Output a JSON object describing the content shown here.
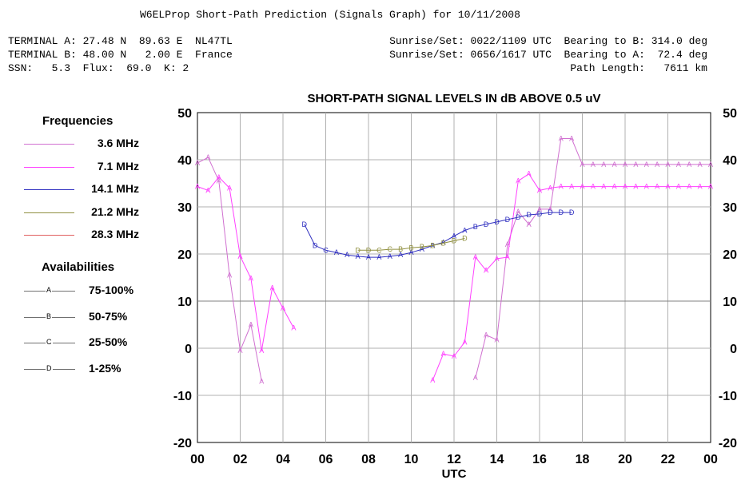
{
  "header": {
    "title": "W6ELProp Short-Path Prediction (Signals Graph) for 10/11/2008",
    "left_lines": [
      "TERMINAL A: 27.48 N  89.63 E  NL47TL",
      "TERMINAL B: 48.00 N   2.00 E  France",
      "SSN:   5.3  Flux:  69.0  K: 2"
    ],
    "right_lines": [
      "Sunrise/Set: 0022/1109 UTC  Bearing to B: 314.0 deg",
      "Sunrise/Set: 0656/1617 UTC  Bearing to A:  72.4 deg",
      "Path Length:   7611 km"
    ]
  },
  "legend": {
    "frequencies_title": "Frequencies",
    "frequencies": [
      {
        "label": "3.6 MHz",
        "color": "#d070d0"
      },
      {
        "label": "7.1 MHz",
        "color": "#ff40ff"
      },
      {
        "label": "14.1 MHz",
        "color": "#3030c0"
      },
      {
        "label": "21.2 MHz",
        "color": "#909040"
      },
      {
        "label": "28.3 MHz",
        "color": "#e06060"
      }
    ],
    "availabilities_title": "Availabilities",
    "availabilities": [
      {
        "marker": "A",
        "label": "75-100%"
      },
      {
        "marker": "B",
        "label": "50-75%"
      },
      {
        "marker": "C",
        "label": "25-50%"
      },
      {
        "marker": "D",
        "label": "1-25%"
      }
    ]
  },
  "chart_data": {
    "type": "line",
    "title": "SHORT-PATH SIGNAL LEVELS IN dB ABOVE 0.5 uV",
    "xlabel": "UTC",
    "ylabel": "",
    "xlim": [
      0,
      24
    ],
    "ylim": [
      -20,
      50
    ],
    "x_tick_labels": [
      "00",
      "02",
      "04",
      "06",
      "08",
      "10",
      "12",
      "14",
      "16",
      "18",
      "20",
      "22",
      "00"
    ],
    "y_ticks": [
      -20,
      -10,
      0,
      10,
      20,
      30,
      40,
      50
    ],
    "grid": true,
    "series": [
      {
        "name": "3.6 MHz",
        "color": "#d070d0",
        "segments": [
          [
            [
              0,
              39.3,
              "A"
            ],
            [
              0.5,
              40.5,
              "A"
            ],
            [
              1,
              35.5,
              "A"
            ],
            [
              1.5,
              15.5,
              "A"
            ],
            [
              2,
              -0.5,
              "A"
            ],
            [
              2.5,
              5,
              "A"
            ],
            [
              3,
              -7,
              "A"
            ]
          ],
          [
            [
              13,
              -6.3,
              "A"
            ],
            [
              13.5,
              2.8,
              "A"
            ],
            [
              14,
              1.8,
              "A"
            ],
            [
              14.5,
              22,
              "A"
            ],
            [
              15,
              29,
              "A"
            ],
            [
              15.5,
              26.3,
              "A"
            ],
            [
              16,
              29.5,
              "A"
            ],
            [
              16.5,
              29.5,
              "A"
            ],
            [
              17,
              44.5,
              "A"
            ],
            [
              17.5,
              44.5,
              "A"
            ],
            [
              18,
              39,
              "A"
            ],
            [
              18.5,
              39,
              "A"
            ],
            [
              19,
              39,
              "A"
            ],
            [
              19.5,
              39,
              "A"
            ],
            [
              20,
              39,
              "A"
            ],
            [
              20.5,
              39,
              "A"
            ],
            [
              21,
              39,
              "A"
            ],
            [
              21.5,
              39,
              "A"
            ],
            [
              22,
              39,
              "A"
            ],
            [
              22.5,
              39,
              "A"
            ],
            [
              23,
              39,
              "A"
            ],
            [
              23.5,
              39,
              "A"
            ],
            [
              24,
              39,
              "A"
            ]
          ]
        ]
      },
      {
        "name": "7.1 MHz",
        "color": "#ff40ff",
        "segments": [
          [
            [
              0,
              34.3,
              "A"
            ],
            [
              0.5,
              33.5,
              "A"
            ],
            [
              1,
              36.3,
              "A"
            ],
            [
              1.5,
              34,
              "A"
            ],
            [
              2,
              19.5,
              "A"
            ],
            [
              2.5,
              14.8,
              "A"
            ],
            [
              3,
              -0.5,
              "A"
            ],
            [
              3.5,
              12.8,
              "A"
            ],
            [
              4,
              8.5,
              "A"
            ],
            [
              4.5,
              4.3,
              "A"
            ]
          ],
          [
            [
              11,
              -6.8,
              "A"
            ],
            [
              11.5,
              -1.2,
              "A"
            ],
            [
              12,
              -1.7,
              "A"
            ],
            [
              12.5,
              1.3,
              "A"
            ],
            [
              13,
              19.3,
              "A"
            ],
            [
              13.5,
              16.5,
              "A"
            ],
            [
              14,
              19,
              "A"
            ],
            [
              14.5,
              19.3,
              "A"
            ],
            [
              15,
              35.5,
              "A"
            ],
            [
              15.5,
              37,
              "A"
            ],
            [
              16,
              33.5,
              "A"
            ],
            [
              16.5,
              34,
              "A"
            ],
            [
              17,
              34.3,
              "A"
            ],
            [
              17.5,
              34.3,
              "A"
            ],
            [
              18,
              34.3,
              "A"
            ],
            [
              18.5,
              34.3,
              "A"
            ],
            [
              19,
              34.3,
              "A"
            ],
            [
              19.5,
              34.3,
              "A"
            ],
            [
              20,
              34.3,
              "A"
            ],
            [
              20.5,
              34.3,
              "A"
            ],
            [
              21,
              34.3,
              "A"
            ],
            [
              21.5,
              34.3,
              "A"
            ],
            [
              22,
              34.3,
              "A"
            ],
            [
              22.5,
              34.3,
              "A"
            ],
            [
              23,
              34.3,
              "A"
            ],
            [
              23.5,
              34.3,
              "A"
            ],
            [
              24,
              34.3,
              "A"
            ]
          ]
        ]
      },
      {
        "name": "14.1 MHz",
        "color": "#3030c0",
        "segments": [
          [
            [
              5,
              26.3,
              "D"
            ],
            [
              5.5,
              21.8,
              "D"
            ],
            [
              6,
              20.8,
              "C"
            ],
            [
              6.5,
              20.3,
              "A"
            ],
            [
              7,
              19.8,
              "A"
            ],
            [
              7.5,
              19.5,
              "A"
            ],
            [
              8,
              19.3,
              "A"
            ],
            [
              8.5,
              19.3,
              "A"
            ],
            [
              9,
              19.5,
              "A"
            ],
            [
              9.5,
              19.8,
              "A"
            ],
            [
              10,
              20.3,
              "A"
            ],
            [
              10.5,
              21,
              "A"
            ],
            [
              11,
              21.8,
              "A"
            ],
            [
              11.5,
              22.5,
              "A"
            ],
            [
              12,
              23.8,
              "A"
            ],
            [
              12.5,
              25,
              "A"
            ],
            [
              13,
              25.8,
              "B"
            ],
            [
              13.5,
              26.3,
              "D"
            ],
            [
              14,
              26.8,
              "D"
            ],
            [
              14.5,
              27.3,
              "D"
            ],
            [
              15,
              27.8,
              "D"
            ],
            [
              15.5,
              28.3,
              "D"
            ],
            [
              16,
              28.5,
              "D"
            ],
            [
              16.5,
              28.8,
              "D"
            ],
            [
              17,
              28.8,
              "D"
            ],
            [
              17.5,
              28.8,
              "D"
            ]
          ]
        ]
      },
      {
        "name": "21.2 MHz",
        "color": "#909040",
        "segments": [
          [
            [
              7.5,
              20.8,
              "D"
            ],
            [
              8,
              20.8,
              "D"
            ],
            [
              8.5,
              20.8,
              "C"
            ],
            [
              9,
              21,
              "C"
            ],
            [
              9.5,
              21,
              "B"
            ],
            [
              10,
              21.3,
              "B"
            ],
            [
              10.5,
              21.5,
              "B"
            ],
            [
              11,
              21.8,
              "B"
            ],
            [
              11.5,
              22.3,
              "B"
            ],
            [
              12,
              22.8,
              "D"
            ],
            [
              12.5,
              23.3,
              "D"
            ]
          ]
        ]
      },
      {
        "name": "28.3 MHz",
        "color": "#e06060",
        "segments": []
      }
    ]
  }
}
